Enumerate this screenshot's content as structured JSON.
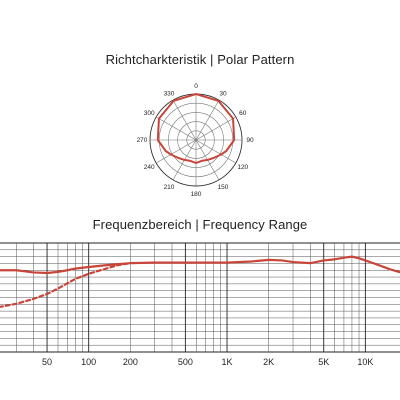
{
  "chart_data": [
    {
      "type": "polar",
      "title": "Richtcharkteristik | Polar Pattern",
      "angle_labels": [
        "0",
        "30",
        "60",
        "90",
        "120",
        "150",
        "180",
        "210",
        "240",
        "270",
        "300",
        "330"
      ],
      "rings": 5,
      "series": [
        {
          "color": "#c8453a",
          "angles": [
            0,
            30,
            60,
            90,
            110,
            120,
            135,
            150,
            165,
            180,
            195,
            210,
            225,
            240,
            250,
            270,
            300,
            330
          ],
          "values": [
            1.0,
            0.98,
            0.93,
            0.83,
            0.7,
            0.63,
            0.55,
            0.5,
            0.47,
            0.5,
            0.47,
            0.5,
            0.55,
            0.63,
            0.7,
            0.83,
            0.93,
            0.98
          ]
        }
      ]
    },
    {
      "type": "line",
      "title": "Frequenzbereich | Frequency Range",
      "x_scale": "log",
      "xlim": [
        20,
        20000
      ],
      "x_tick_labels": [
        "50",
        "100",
        "200",
        "500",
        "1K",
        "2K",
        "5K",
        "10K"
      ],
      "x_tick_values": [
        50,
        100,
        200,
        500,
        1000,
        2000,
        5000,
        10000
      ],
      "ylim": [
        -30,
        10
      ],
      "grid": true,
      "series": [
        {
          "style": "solid",
          "color": "#c8453a",
          "x": [
            20,
            25,
            30,
            40,
            50,
            60,
            70,
            80,
            100,
            130,
            160,
            200,
            300,
            500,
            700,
            1000,
            1500,
            2000,
            2500,
            3000,
            4000,
            5000,
            6000,
            7000,
            8000,
            9000,
            10000,
            12000,
            15000,
            20000
          ],
          "y": [
            0,
            0,
            0,
            -0.8,
            -1,
            -0.6,
            0,
            0.6,
            1.2,
            1.8,
            2.2,
            2.6,
            2.8,
            2.8,
            2.8,
            2.8,
            3.2,
            3.8,
            3.6,
            3.0,
            2.6,
            3.6,
            4.0,
            4.6,
            5.0,
            4.4,
            3.6,
            2.2,
            0.4,
            -1.5
          ]
        },
        {
          "style": "dashed",
          "color": "#c8453a",
          "x": [
            20,
            30,
            40,
            50,
            60,
            70,
            80,
            100,
            130,
            160,
            200
          ],
          "y": [
            -14,
            -12.3,
            -10.5,
            -8.7,
            -6.7,
            -4.8,
            -3.2,
            -1.3,
            0.4,
            1.8,
            2.6
          ]
        }
      ]
    }
  ]
}
